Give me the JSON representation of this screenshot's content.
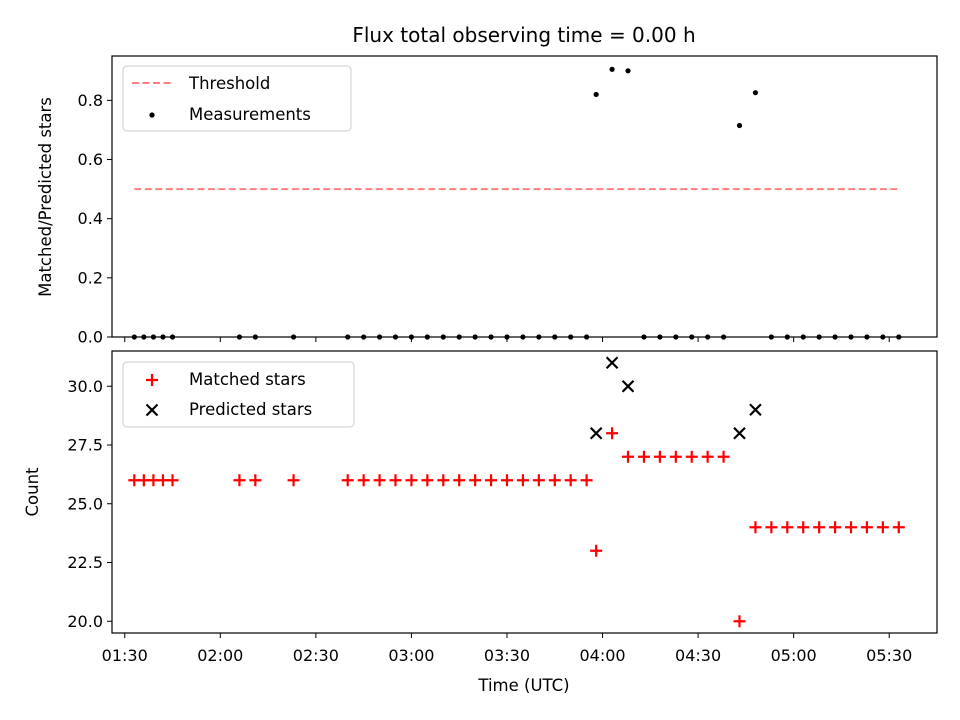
{
  "chart_data": [
    {
      "type": "scatter",
      "title": "Flux total observing time = 0.00 h",
      "ylabel": "Matched/Predicted stars",
      "xlim": [
        "01:26",
        "05:45"
      ],
      "ylim": [
        0,
        0.95
      ],
      "yticks": [
        "0.0",
        "0.2",
        "0.4",
        "0.6",
        "0.8"
      ],
      "legend": "top-left",
      "threshold": {
        "name": "Threshold",
        "value": 0.5,
        "x": [
          "01:33",
          "05:33"
        ],
        "color": "#ff7f7f",
        "style": "dashed"
      },
      "series": [
        {
          "name": "Measurements",
          "color": "#000000",
          "points": [
            [
              "01:33",
              0
            ],
            [
              "01:36",
              0
            ],
            [
              "01:39",
              0
            ],
            [
              "01:42",
              0
            ],
            [
              "01:45",
              0
            ],
            [
              "02:06",
              0
            ],
            [
              "02:11",
              0
            ],
            [
              "02:23",
              0
            ],
            [
              "02:40",
              0
            ],
            [
              "02:45",
              0
            ],
            [
              "02:50",
              0
            ],
            [
              "02:55",
              0
            ],
            [
              "03:00",
              0
            ],
            [
              "03:05",
              0
            ],
            [
              "03:10",
              0
            ],
            [
              "03:15",
              0
            ],
            [
              "03:20",
              0
            ],
            [
              "03:25",
              0
            ],
            [
              "03:30",
              0
            ],
            [
              "03:35",
              0
            ],
            [
              "03:40",
              0
            ],
            [
              "03:45",
              0
            ],
            [
              "03:50",
              0
            ],
            [
              "03:55",
              0
            ],
            [
              "03:58",
              0.82
            ],
            [
              "04:03",
              0.905
            ],
            [
              "04:08",
              0.9
            ],
            [
              "04:13",
              0
            ],
            [
              "04:18",
              0
            ],
            [
              "04:23",
              0
            ],
            [
              "04:28",
              0
            ],
            [
              "04:33",
              0
            ],
            [
              "04:38",
              0
            ],
            [
              "04:43",
              0.715
            ],
            [
              "04:48",
              0.826
            ],
            [
              "04:53",
              0
            ],
            [
              "04:58",
              0
            ],
            [
              "05:03",
              0
            ],
            [
              "05:08",
              0
            ],
            [
              "05:13",
              0
            ],
            [
              "05:18",
              0
            ],
            [
              "05:23",
              0
            ],
            [
              "05:28",
              0
            ],
            [
              "05:33",
              0
            ]
          ]
        }
      ]
    },
    {
      "type": "scatter",
      "xlabel": "Time (UTC)",
      "ylabel": "Count",
      "xlim": [
        "01:26",
        "05:45"
      ],
      "ylim": [
        19.5,
        31.5
      ],
      "xticks": [
        "01:30",
        "02:00",
        "02:30",
        "03:00",
        "03:30",
        "04:00",
        "04:30",
        "05:00",
        "05:30"
      ],
      "yticks": [
        "20.0",
        "22.5",
        "25.0",
        "27.5",
        "30.0"
      ],
      "legend": "top-left",
      "series": [
        {
          "name": "Matched stars",
          "color": "#ff0000",
          "marker": "plus",
          "points": [
            [
              "01:33",
              26
            ],
            [
              "01:36",
              26
            ],
            [
              "01:39",
              26
            ],
            [
              "01:42",
              26
            ],
            [
              "01:45",
              26
            ],
            [
              "02:06",
              26
            ],
            [
              "02:11",
              26
            ],
            [
              "02:23",
              26
            ],
            [
              "02:40",
              26
            ],
            [
              "02:45",
              26
            ],
            [
              "02:50",
              26
            ],
            [
              "02:55",
              26
            ],
            [
              "03:00",
              26
            ],
            [
              "03:05",
              26
            ],
            [
              "03:10",
              26
            ],
            [
              "03:15",
              26
            ],
            [
              "03:20",
              26
            ],
            [
              "03:25",
              26
            ],
            [
              "03:30",
              26
            ],
            [
              "03:35",
              26
            ],
            [
              "03:40",
              26
            ],
            [
              "03:45",
              26
            ],
            [
              "03:50",
              26
            ],
            [
              "03:55",
              26
            ],
            [
              "03:58",
              23
            ],
            [
              "04:03",
              28
            ],
            [
              "04:08",
              27
            ],
            [
              "04:13",
              27
            ],
            [
              "04:18",
              27
            ],
            [
              "04:23",
              27
            ],
            [
              "04:28",
              27
            ],
            [
              "04:33",
              27
            ],
            [
              "04:38",
              27
            ],
            [
              "04:43",
              20
            ],
            [
              "04:48",
              24
            ],
            [
              "04:53",
              24
            ],
            [
              "04:58",
              24
            ],
            [
              "05:03",
              24
            ],
            [
              "05:08",
              24
            ],
            [
              "05:13",
              24
            ],
            [
              "05:18",
              24
            ],
            [
              "05:23",
              24
            ],
            [
              "05:28",
              24
            ],
            [
              "05:33",
              24
            ]
          ]
        },
        {
          "name": "Predicted stars",
          "color": "#000000",
          "marker": "x",
          "points": [
            [
              "03:58",
              28
            ],
            [
              "04:03",
              31
            ],
            [
              "04:08",
              30
            ],
            [
              "04:43",
              28
            ],
            [
              "04:48",
              29
            ]
          ]
        }
      ]
    }
  ]
}
